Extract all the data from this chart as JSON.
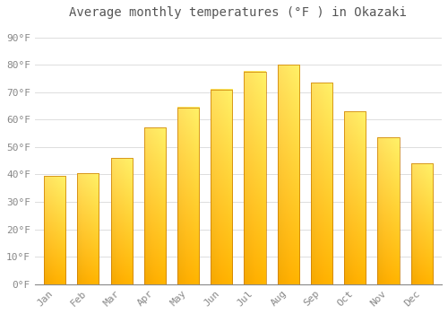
{
  "months": [
    "Jan",
    "Feb",
    "Mar",
    "Apr",
    "May",
    "Jun",
    "Jul",
    "Aug",
    "Sep",
    "Oct",
    "Nov",
    "Dec"
  ],
  "temperatures": [
    39.5,
    40.5,
    46.0,
    57.0,
    64.5,
    71.0,
    77.5,
    80.0,
    73.5,
    63.0,
    53.5,
    44.0
  ],
  "title": "Average monthly temperatures (°F ) in Okazaki",
  "ylabel_ticks": [
    "0°F",
    "10°F",
    "20°F",
    "30°F",
    "40°F",
    "50°F",
    "60°F",
    "70°F",
    "80°F",
    "90°F"
  ],
  "ytick_values": [
    0,
    10,
    20,
    30,
    40,
    50,
    60,
    70,
    80,
    90
  ],
  "ylim": [
    0,
    95
  ],
  "bar_color_bottom": "#F5A800",
  "bar_color_top": "#FFE060",
  "bar_edge_color": "#C87800",
  "background_color": "#FFFFFF",
  "grid_color": "#DDDDDD",
  "title_fontsize": 10,
  "tick_fontsize": 8,
  "tick_color": "#888888",
  "title_color": "#555555"
}
